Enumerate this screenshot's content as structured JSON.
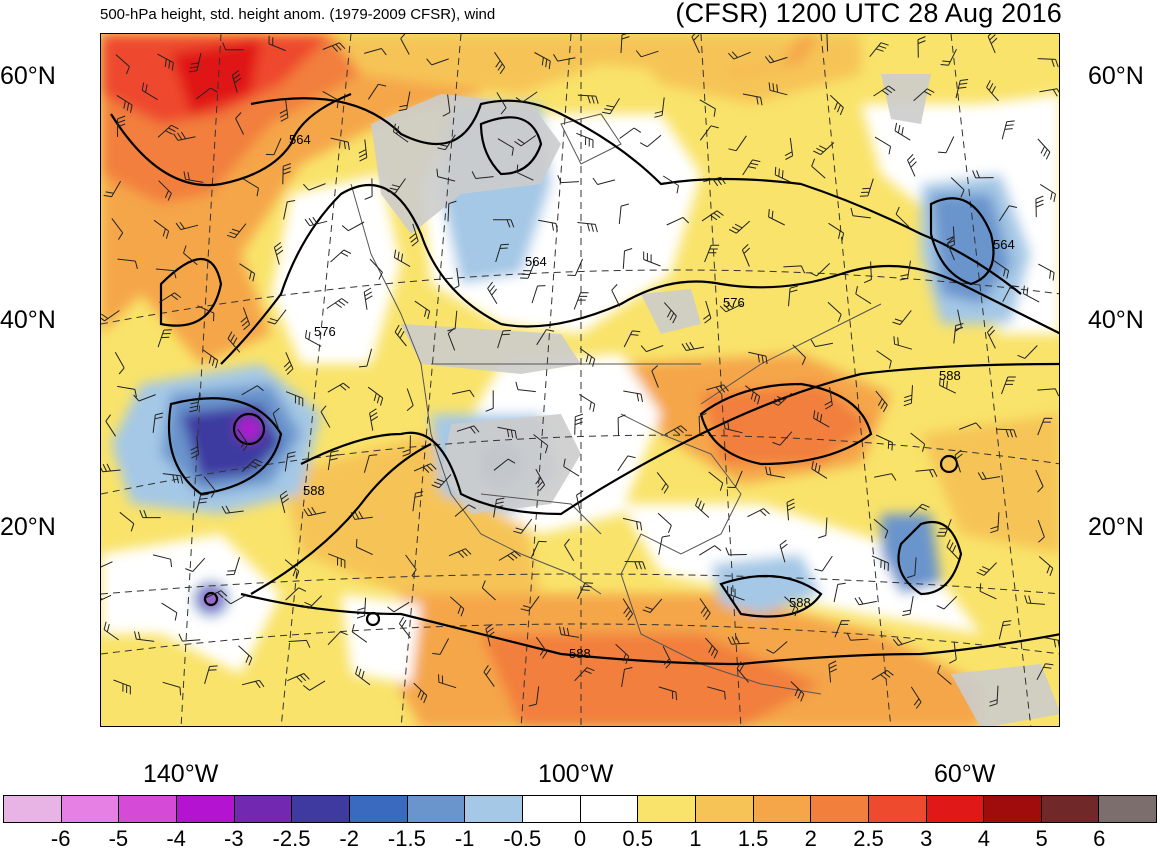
{
  "header": {
    "description": "500-hPa height, std. height anom. (1979-2009 CFSR), wind",
    "run": "(CFSR) 1200 UTC 28 Aug 2016"
  },
  "latitude_labels": [
    "60°N",
    "40°N",
    "20°N"
  ],
  "longitude_labels": [
    "140°W",
    "100°W",
    "60°W"
  ],
  "contour_labels": [
    "564",
    "564",
    "564",
    "576",
    "576",
    "588",
    "588",
    "588",
    "588"
  ],
  "colorbar": {
    "labels": [
      "-6",
      "-5",
      "-4",
      "-3",
      "-2.5",
      "-2",
      "-1.5",
      "-1",
      "-0.5",
      "0",
      "0.5",
      "1",
      "1.5",
      "2",
      "2.5",
      "3",
      "4",
      "5",
      "6"
    ],
    "colors": [
      "#e8b4e6",
      "#e680e4",
      "#d64ad8",
      "#b414d2",
      "#7228b0",
      "#3e3aa0",
      "#3a6ac0",
      "#6a94cc",
      "#a4c8e6",
      "#ffffff",
      "#ffffff",
      "#f9e36a",
      "#f6c456",
      "#f5a648",
      "#f27f3c",
      "#ee4a2e",
      "#e01818",
      "#a00c0c",
      "#702828",
      "#7c6e6c"
    ]
  }
}
